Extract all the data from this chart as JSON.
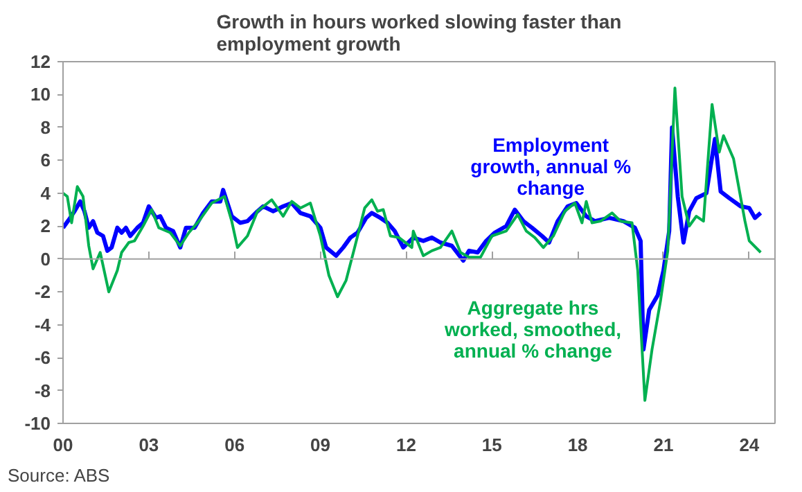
{
  "chart_data": {
    "type": "line",
    "title": "Growth in hours worked slowing faster than\nemployment growth",
    "annotations": [
      "Source: ABS"
    ],
    "xlim": [
      2000,
      2024.9
    ],
    "xticks": [
      {
        "value": 2000,
        "label": "00"
      },
      {
        "value": 2003,
        "label": "03"
      },
      {
        "value": 2006,
        "label": "06"
      },
      {
        "value": 2009,
        "label": "09"
      },
      {
        "value": 2012,
        "label": "12"
      },
      {
        "value": 2015,
        "label": "15"
      },
      {
        "value": 2018,
        "label": "18"
      },
      {
        "value": 2021,
        "label": "21"
      },
      {
        "value": 2024,
        "label": "24"
      }
    ],
    "ylim": [
      -10,
      12
    ],
    "yticks": [
      -10,
      -8,
      -6,
      -4,
      -2,
      0,
      2,
      4,
      6,
      8,
      10,
      12
    ],
    "grid": false,
    "ref_lines": [
      {
        "axis": "y",
        "value": 0,
        "color": "#a0a0a0"
      }
    ],
    "legend": false,
    "line_style": "solid",
    "series": [
      {
        "name": "Employment growth, annual % change",
        "color": "#0000ff",
        "x": [
          2000.0,
          2000.25,
          2000.4,
          2000.6,
          2000.75,
          2000.9,
          2001.05,
          2001.2,
          2001.4,
          2001.55,
          2001.7,
          2001.9,
          2002.05,
          2002.2,
          2002.35,
          2002.6,
          2002.8,
          2003.0,
          2003.25,
          2003.4,
          2003.6,
          2003.85,
          2004.1,
          2004.3,
          2004.6,
          2004.9,
          2005.2,
          2005.5,
          2005.6,
          2005.9,
          2006.2,
          2006.45,
          2006.8,
          2007.0,
          2007.35,
          2007.7,
          2008.0,
          2008.3,
          2008.65,
          2009.0,
          2009.2,
          2009.55,
          2009.8,
          2010.05,
          2010.3,
          2010.6,
          2010.8,
          2011.1,
          2011.35,
          2011.6,
          2011.9,
          2012.25,
          2012.6,
          2012.9,
          2013.2,
          2013.6,
          2014.0,
          2014.2,
          2014.5,
          2014.8,
          2015.1,
          2015.5,
          2015.8,
          2016.1,
          2016.4,
          2016.75,
          2017.0,
          2017.3,
          2017.65,
          2017.95,
          2018.3,
          2018.6,
          2019.1,
          2019.6,
          2020.0,
          2020.2,
          2020.3,
          2020.5,
          2020.8,
          2021.0,
          2021.2,
          2021.3,
          2021.5,
          2021.7,
          2021.9,
          2022.15,
          2022.5,
          2022.8,
          2023.0,
          2023.3,
          2023.7,
          2024.0,
          2024.2,
          2024.4
        ],
        "values": [
          1.9,
          2.5,
          2.9,
          3.5,
          2.9,
          1.9,
          2.3,
          1.6,
          1.4,
          0.5,
          0.7,
          1.9,
          1.6,
          1.9,
          1.4,
          1.9,
          2.2,
          3.2,
          2.5,
          2.6,
          1.9,
          1.7,
          0.7,
          1.9,
          1.9,
          2.8,
          3.5,
          3.5,
          4.2,
          2.6,
          2.2,
          2.3,
          2.9,
          3.2,
          2.9,
          3.2,
          3.4,
          2.8,
          2.6,
          1.9,
          0.7,
          0.2,
          0.7,
          1.3,
          1.6,
          2.5,
          2.8,
          2.5,
          2.2,
          1.7,
          0.7,
          1.3,
          1.1,
          1.3,
          1.0,
          0.8,
          -0.1,
          0.5,
          0.4,
          1.1,
          1.6,
          2.0,
          3.0,
          2.3,
          1.9,
          1.4,
          1.0,
          2.3,
          3.2,
          3.4,
          2.6,
          2.3,
          2.5,
          2.3,
          1.9,
          1.1,
          -5.5,
          -3.1,
          -2.2,
          -0.7,
          1.7,
          8.0,
          3.8,
          1.0,
          2.9,
          3.7,
          4.0,
          7.3,
          4.1,
          3.7,
          3.2,
          3.1,
          2.5,
          2.8
        ]
      },
      {
        "name": "Aggregate hrs worked, smoothed, annual % change",
        "color": "#00b050",
        "x": [
          2000.0,
          2000.15,
          2000.3,
          2000.5,
          2000.7,
          2000.9,
          2001.05,
          2001.3,
          2001.6,
          2001.9,
          2002.05,
          2002.3,
          2002.5,
          2002.8,
          2003.1,
          2003.35,
          2003.75,
          2004.1,
          2004.4,
          2004.75,
          2005.2,
          2005.65,
          2005.9,
          2006.1,
          2006.45,
          2006.8,
          2007.3,
          2007.7,
          2008.0,
          2008.3,
          2008.65,
          2009.0,
          2009.3,
          2009.6,
          2009.9,
          2010.2,
          2010.55,
          2010.8,
          2011.0,
          2011.2,
          2011.45,
          2011.75,
          2012.2,
          2012.25,
          2012.6,
          2012.9,
          2013.2,
          2013.6,
          2013.9,
          2014.2,
          2014.6,
          2015.0,
          2015.5,
          2015.9,
          2016.2,
          2016.5,
          2016.8,
          2017.15,
          2017.55,
          2017.9,
          2018.15,
          2018.3,
          2018.5,
          2018.8,
          2019.2,
          2019.5,
          2019.9,
          2020.1,
          2020.35,
          2020.6,
          2020.9,
          2021.15,
          2021.4,
          2021.65,
          2021.9,
          2022.15,
          2022.4,
          2022.7,
          2022.95,
          2023.1,
          2023.45,
          2023.85,
          2024.0,
          2024.4
        ],
        "values": [
          4.0,
          3.8,
          2.2,
          4.4,
          3.8,
          0.8,
          -0.6,
          0.4,
          -2.0,
          -0.7,
          0.4,
          1.0,
          1.1,
          2.0,
          3.0,
          1.9,
          1.6,
          0.8,
          1.6,
          2.3,
          3.4,
          3.8,
          2.3,
          0.7,
          1.4,
          2.9,
          3.6,
          2.6,
          3.5,
          3.1,
          3.4,
          1.4,
          -1.0,
          -2.3,
          -1.3,
          0.7,
          3.1,
          3.6,
          2.9,
          3.0,
          1.4,
          1.3,
          0.7,
          1.7,
          0.2,
          0.5,
          0.7,
          1.7,
          0.4,
          0.1,
          0.1,
          1.4,
          1.7,
          2.7,
          1.7,
          1.3,
          0.7,
          1.4,
          2.9,
          3.4,
          2.2,
          3.5,
          2.2,
          2.3,
          2.8,
          2.3,
          2.2,
          -0.7,
          -8.6,
          -5.5,
          -2.5,
          0.5,
          10.4,
          3.8,
          2.0,
          2.6,
          2.3,
          9.4,
          6.5,
          7.5,
          6.1,
          2.3,
          1.1,
          0.4
        ]
      }
    ]
  }
}
